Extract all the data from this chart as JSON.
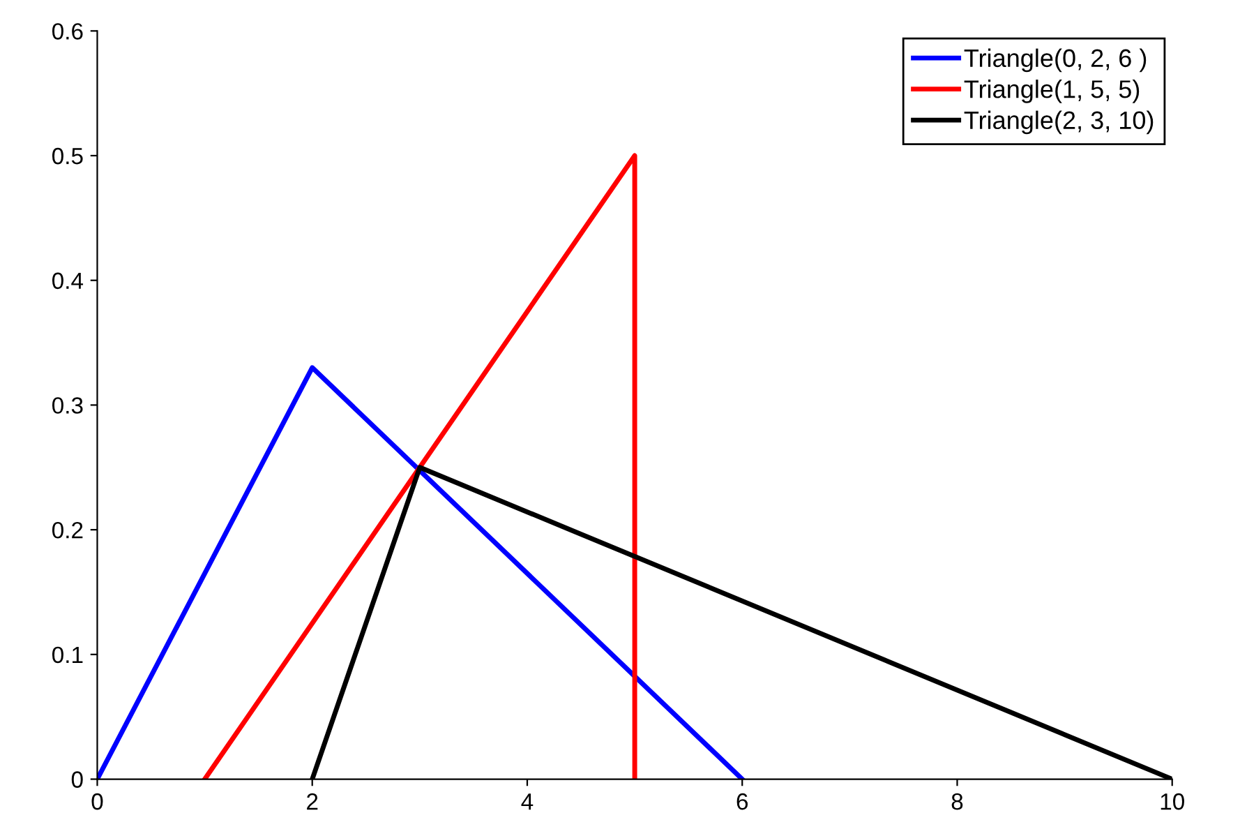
{
  "chart_data": {
    "type": "line",
    "series": [
      {
        "name": "Triangle(0, 2, 6 )",
        "color": "#0000ff",
        "x": [
          0,
          2,
          6
        ],
        "values": [
          0,
          0.33,
          0
        ]
      },
      {
        "name": "Triangle(1, 5, 5)",
        "color": "#ff0000",
        "x": [
          1,
          5,
          5
        ],
        "values": [
          0,
          0.5,
          0
        ]
      },
      {
        "name": "Triangle(2, 3, 10)",
        "color": "#000000",
        "x": [
          2,
          3,
          10
        ],
        "values": [
          0,
          0.25,
          0
        ]
      }
    ],
    "xlim": [
      0,
      10
    ],
    "xticks": [
      0,
      2,
      4,
      6,
      8,
      10
    ],
    "ylim": [
      0,
      0.6
    ],
    "yticks": [
      0,
      0.1,
      0.2,
      0.3,
      0.4,
      0.5,
      0.6
    ],
    "grid": false,
    "legend": "top right",
    "marker": "none",
    "line_style": "solid"
  }
}
